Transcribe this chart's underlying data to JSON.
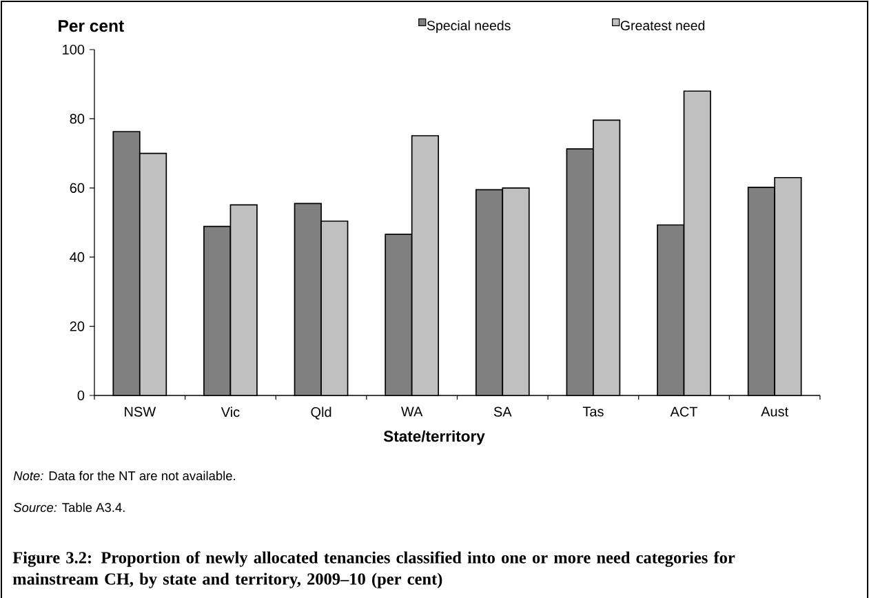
{
  "chart_data": {
    "type": "bar",
    "title": "Figure 3.2: Proportion of newly allocated tenancies classified into one or more need categories for mainstream CH, by state and territory, 2009–10 (per cent)",
    "xlabel": "State/territory",
    "ylabel": "Per cent",
    "categories": [
      "NSW",
      "Vic",
      "Qld",
      "WA",
      "SA",
      "Tas",
      "ACT",
      "Aust"
    ],
    "series": [
      {
        "name": "Special needs",
        "color": "#808080",
        "values": [
          76.3,
          48.9,
          55.5,
          46.6,
          59.5,
          71.3,
          49.3,
          60.2
        ]
      },
      {
        "name": "Greatest need",
        "color": "#c0c0c0",
        "values": [
          70.0,
          55.1,
          50.4,
          75.1,
          60.0,
          79.6,
          88.0,
          63.0
        ]
      }
    ],
    "ylim": [
      0,
      100
    ],
    "yticks": [
      0,
      20,
      40,
      60,
      80,
      100
    ],
    "legend": "top",
    "annotations": [
      "*Note:* Data for the NT are not available.",
      "*Source:* Table A3.4."
    ]
  }
}
